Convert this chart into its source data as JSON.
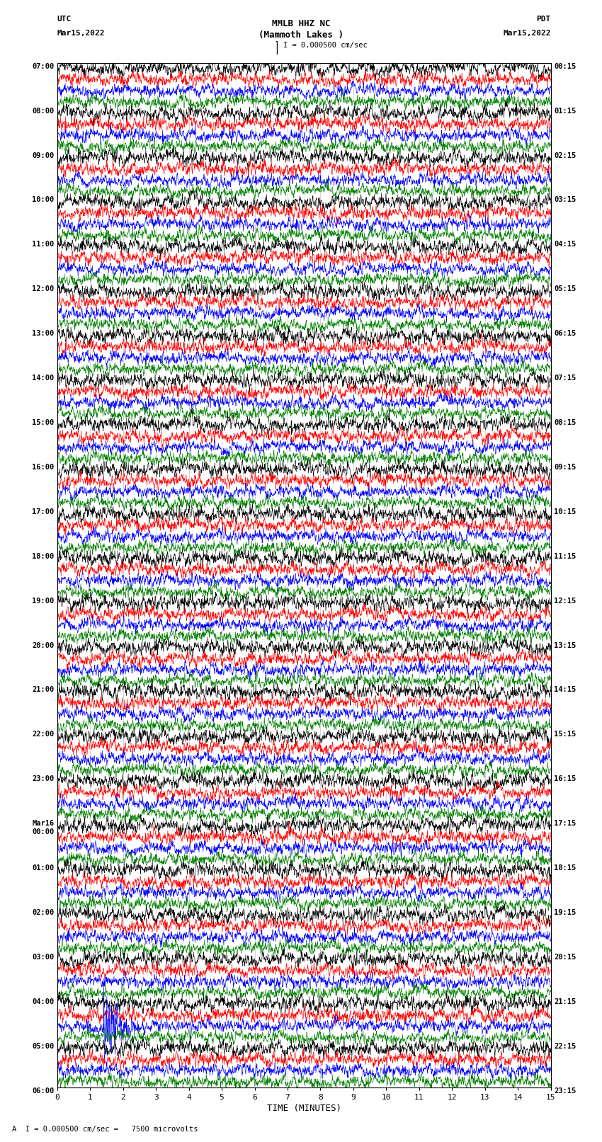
{
  "title_line1": "MMLB HHZ NC",
  "title_line2": "(Mammoth Lakes )",
  "scale_text": "I = 0.000500 cm/sec",
  "bottom_text": "A  I = 0.000500 cm/sec =   7500 microvolts",
  "utc_label": "UTC",
  "utc_date": "Mar15,2022",
  "pdt_label": "PDT",
  "pdt_date": "Mar15,2022",
  "xlabel": "TIME (MINUTES)",
  "left_times": [
    "07:00",
    "08:00",
    "09:00",
    "10:00",
    "11:00",
    "12:00",
    "13:00",
    "14:00",
    "15:00",
    "16:00",
    "17:00",
    "18:00",
    "19:00",
    "20:00",
    "21:00",
    "22:00",
    "23:00",
    "Mar16\n00:00",
    "01:00",
    "02:00",
    "03:00",
    "04:00",
    "05:00",
    "06:00"
  ],
  "right_times": [
    "00:15",
    "01:15",
    "02:15",
    "03:15",
    "04:15",
    "05:15",
    "06:15",
    "07:15",
    "08:15",
    "09:15",
    "10:15",
    "11:15",
    "12:15",
    "13:15",
    "14:15",
    "15:15",
    "16:15",
    "17:15",
    "18:15",
    "19:15",
    "20:15",
    "21:15",
    "22:15",
    "23:15"
  ],
  "colors": [
    "black",
    "red",
    "blue",
    "green"
  ],
  "n_hours": 23,
  "traces_per_hour": 4,
  "x_min": 0,
  "x_max": 15,
  "x_ticks": [
    0,
    1,
    2,
    3,
    4,
    5,
    6,
    7,
    8,
    9,
    10,
    11,
    12,
    13,
    14,
    15
  ],
  "earthquake_hour": 21,
  "earthquake_trace": 2,
  "earthquake_minute": 1.5
}
